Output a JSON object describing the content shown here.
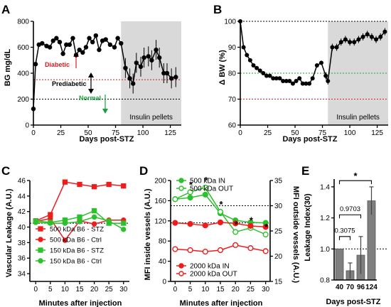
{
  "chart_data": [
    {
      "panel": "A",
      "type": "line",
      "xlabel": "Days post-STZ",
      "ylabel": "BG mg/dL",
      "xlim": [
        0,
        135
      ],
      "ylim": [
        0,
        800
      ],
      "xticks": [
        0,
        25,
        50,
        75,
        100,
        125
      ],
      "yticks": [
        0,
        200,
        400,
        600,
        800
      ],
      "shaded_from_x": 80,
      "shade_label": "Insulin pellets",
      "thresholds": [
        {
          "y": 350,
          "label": "Diabetic",
          "color": "#e31a1c"
        },
        {
          "y": 200,
          "label": "Normal",
          "color": "#1aa23a"
        }
      ],
      "middle_label": "Prediabetic",
      "x": [
        0,
        2,
        5,
        8,
        12,
        15,
        18,
        21,
        24,
        27,
        30,
        33,
        36,
        39,
        42,
        45,
        48,
        51,
        54,
        57,
        60,
        63,
        66,
        70,
        74,
        77,
        80,
        84,
        88,
        91,
        94,
        98,
        101,
        105,
        108,
        112,
        115,
        119,
        122,
        126,
        130
      ],
      "y": [
        125,
        470,
        620,
        630,
        610,
        600,
        650,
        670,
        640,
        550,
        620,
        620,
        670,
        540,
        580,
        560,
        600,
        670,
        640,
        690,
        580,
        650,
        660,
        620,
        600,
        670,
        630,
        440,
        360,
        320,
        480,
        450,
        520,
        530,
        500,
        580,
        520,
        400,
        400,
        360,
        370
      ]
    },
    {
      "panel": "B",
      "type": "line",
      "xlabel": "Days post-STZ",
      "ylabel": "Δ BW (%)",
      "xlim": [
        0,
        135
      ],
      "ylim": [
        60,
        100
      ],
      "xticks": [
        0,
        25,
        50,
        75,
        100,
        125
      ],
      "yticks": [
        60,
        70,
        80,
        90,
        100
      ],
      "shaded_from_x": 80,
      "shade_label": "Insulin pellets",
      "reference_lines": [
        100,
        80,
        70
      ],
      "x": [
        0,
        3,
        6,
        9,
        12,
        15,
        18,
        21,
        24,
        27,
        30,
        33,
        36,
        39,
        42,
        45,
        48,
        51,
        54,
        57,
        60,
        63,
        66,
        70,
        74,
        78,
        80,
        84,
        88,
        92,
        96,
        100,
        104,
        108,
        112,
        116,
        120,
        124,
        128,
        132
      ],
      "y": [
        100,
        90,
        87,
        85,
        83,
        82,
        81,
        80,
        79,
        79,
        78,
        78,
        78,
        77,
        77,
        77,
        76,
        77,
        78,
        76,
        76,
        76,
        78,
        83,
        84,
        79,
        77,
        90,
        90,
        92,
        93,
        92,
        92,
        93,
        94,
        95,
        94,
        93,
        94,
        96
      ]
    },
    {
      "panel": "C",
      "type": "line",
      "xlabel": "Minutes after injection",
      "ylabel": "Vascular Leakage (A.U.)",
      "xlim": [
        0,
        30
      ],
      "ylim": [
        33,
        46
      ],
      "xticks": [
        0,
        5,
        10,
        15,
        20,
        25,
        30
      ],
      "yticks": [
        34,
        36,
        38,
        40,
        42,
        44,
        46
      ],
      "reference_y": 40.5,
      "x": [
        0,
        5,
        10,
        15,
        20,
        25,
        30
      ],
      "series": [
        {
          "name": "500 kDa B6 - STZ",
          "color": "#ef1c1c",
          "marker": "square",
          "values": [
            40.8,
            41.6,
            45.8,
            45.5,
            45.2,
            45.5,
            45.3
          ]
        },
        {
          "name": "500 kDa B6 - Ctrl",
          "color": "#ef1c1c",
          "marker": "circle",
          "values": [
            40.7,
            41.1,
            38.3,
            40.8,
            40.4,
            40.9,
            40.9
          ]
        },
        {
          "name": "150 kDa B6 - STZ",
          "color": "#2cc12c",
          "marker": "square",
          "values": [
            40.8,
            40.6,
            40.9,
            41.3,
            42.1,
            40.5,
            40.5
          ]
        },
        {
          "name": "150 kDa B6 - Ctrl",
          "color": "#2cc12c",
          "marker": "circle",
          "values": [
            40.6,
            40.5,
            40.5,
            40.7,
            41.3,
            40.8,
            39.7
          ]
        }
      ]
    },
    {
      "panel": "D",
      "type": "line",
      "xlabel": "Minutes after injection",
      "ylabel": "MFI inside vessels (A.U.)",
      "ylabel_right": "MFI outside vessels (A.U.)",
      "xlim": [
        0,
        30
      ],
      "ylim": [
        0,
        200
      ],
      "ylim_right": [
        15,
        35
      ],
      "xticks": [
        0,
        5,
        10,
        15,
        20,
        25,
        30
      ],
      "yticks": [
        0,
        40,
        80,
        120,
        160,
        200
      ],
      "yticks_right": [
        15,
        20,
        25,
        30,
        35
      ],
      "x": [
        0,
        5,
        10,
        15,
        20,
        25,
        30
      ],
      "significance_marker": "*",
      "series": [
        {
          "name": "500 kDa IN",
          "color": "#2cc12c",
          "marker": "filled-circle",
          "values": [
            163,
            166,
            172,
            135,
            121,
            117,
            116
          ]
        },
        {
          "name": "500 kDa OUT",
          "color": "#2cc12c",
          "marker": "open-circle",
          "values_right": [
            31.3,
            32.7,
            33.6,
            28.8,
            24.8,
            25.6,
            24.3
          ]
        },
        {
          "name": "2000 kDa IN",
          "color": "#ef1c1c",
          "marker": "filled-circle",
          "values": [
            116,
            114,
            111,
            117,
            115,
            110,
            108
          ]
        },
        {
          "name": "2000 kDa OUT",
          "color": "#ef1c1c",
          "marker": "open-circle",
          "values_right": [
            21.4,
            21.2,
            20.9,
            21.2,
            22.2,
            21.6,
            21.0
          ]
        }
      ]
    },
    {
      "panel": "E",
      "type": "bar",
      "xlabel": "Days post-STZ",
      "ylabel": "Leakage Index(30)",
      "ylim": [
        0.8,
        1.45
      ],
      "yticks": [
        0.8,
        1.0,
        1.2,
        1.4
      ],
      "reference_y": 1.0,
      "categories": [
        "40",
        "70",
        "96",
        "124"
      ],
      "values": [
        1.0,
        0.86,
        0.96,
        1.31
      ],
      "errors": [
        0.0,
        0.05,
        0.12,
        0.09
      ],
      "comparisons": [
        {
          "from": "40",
          "to": "70",
          "label": "0.3075"
        },
        {
          "from": "40",
          "to": "96",
          "label": "0.9703"
        },
        {
          "from": "40",
          "to": "124",
          "label": "*"
        }
      ]
    }
  ]
}
